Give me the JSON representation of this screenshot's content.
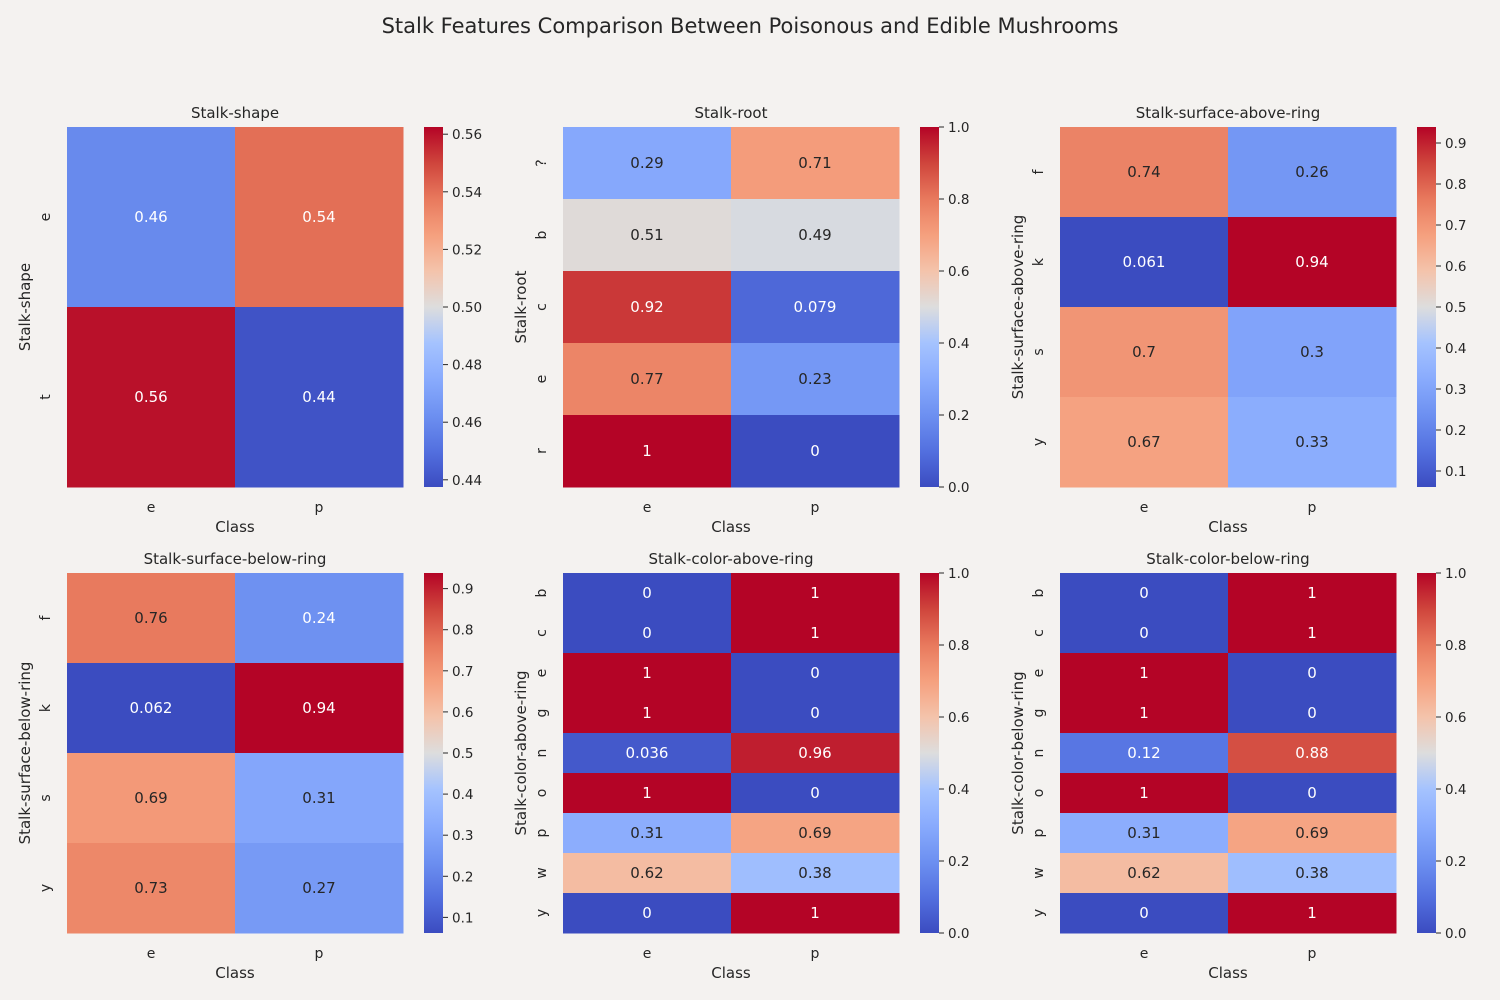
{
  "title": "Stalk Features Comparison Between Poisonous and Edible Mushrooms",
  "chart_data": [
    {
      "type": "heatmap",
      "title": "Stalk-shape",
      "xlabel": "Class",
      "ylabel": "Stalk-shape",
      "x_categories": [
        "e",
        "p"
      ],
      "y_categories": [
        "e",
        "t"
      ],
      "values": [
        [
          0.46,
          0.54
        ],
        [
          0.56,
          0.44
        ]
      ],
      "value_labels": [
        [
          "0.46",
          "0.54"
        ],
        [
          "0.56",
          "0.44"
        ]
      ],
      "colorbar": {
        "min": 0.4375,
        "max": 0.5625,
        "ticks": [
          "0.44",
          "0.46",
          "0.48",
          "0.50",
          "0.52",
          "0.54",
          "0.56"
        ]
      },
      "colormap": "coolwarm"
    },
    {
      "type": "heatmap",
      "title": "Stalk-root",
      "xlabel": "Class",
      "ylabel": "Stalk-root",
      "x_categories": [
        "e",
        "p"
      ],
      "y_categories": [
        "?",
        "b",
        "c",
        "e",
        "r"
      ],
      "values": [
        [
          0.29,
          0.71
        ],
        [
          0.51,
          0.49
        ],
        [
          0.92,
          0.079
        ],
        [
          0.77,
          0.23
        ],
        [
          1,
          0
        ]
      ],
      "value_labels": [
        [
          "0.29",
          "0.71"
        ],
        [
          "0.51",
          "0.49"
        ],
        [
          "0.92",
          "0.079"
        ],
        [
          "0.77",
          "0.23"
        ],
        [
          "1",
          "0"
        ]
      ],
      "colorbar": {
        "min": 0,
        "max": 1,
        "ticks": [
          "0.0",
          "0.2",
          "0.4",
          "0.6",
          "0.8",
          "1.0"
        ]
      },
      "colormap": "coolwarm"
    },
    {
      "type": "heatmap",
      "title": "Stalk-surface-above-ring",
      "xlabel": "Class",
      "ylabel": "Stalk-surface-above-ring",
      "x_categories": [
        "e",
        "p"
      ],
      "y_categories": [
        "f",
        "k",
        "s",
        "y"
      ],
      "values": [
        [
          0.74,
          0.26
        ],
        [
          0.061,
          0.94
        ],
        [
          0.7,
          0.3
        ],
        [
          0.67,
          0.33
        ]
      ],
      "value_labels": [
        [
          "0.74",
          "0.26"
        ],
        [
          "0.061",
          "0.94"
        ],
        [
          "0.7",
          "0.3"
        ],
        [
          "0.67",
          "0.33"
        ]
      ],
      "colorbar": {
        "min": 0.061,
        "max": 0.939,
        "ticks": [
          "0.1",
          "0.2",
          "0.3",
          "0.4",
          "0.5",
          "0.6",
          "0.7",
          "0.8",
          "0.9"
        ]
      },
      "colormap": "coolwarm"
    },
    {
      "type": "heatmap",
      "title": "Stalk-surface-below-ring",
      "xlabel": "Class",
      "ylabel": "Stalk-surface-below-ring",
      "x_categories": [
        "e",
        "p"
      ],
      "y_categories": [
        "f",
        "k",
        "s",
        "y"
      ],
      "values": [
        [
          0.76,
          0.24
        ],
        [
          0.062,
          0.94
        ],
        [
          0.69,
          0.31
        ],
        [
          0.73,
          0.27
        ]
      ],
      "value_labels": [
        [
          "0.76",
          "0.24"
        ],
        [
          "0.062",
          "0.94"
        ],
        [
          "0.69",
          "0.31"
        ],
        [
          "0.73",
          "0.27"
        ]
      ],
      "colorbar": {
        "min": 0.062,
        "max": 0.938,
        "ticks": [
          "0.1",
          "0.2",
          "0.3",
          "0.4",
          "0.5",
          "0.6",
          "0.7",
          "0.8",
          "0.9"
        ]
      },
      "colormap": "coolwarm"
    },
    {
      "type": "heatmap",
      "title": "Stalk-color-above-ring",
      "xlabel": "Class",
      "ylabel": "Stalk-color-above-ring",
      "x_categories": [
        "e",
        "p"
      ],
      "y_categories": [
        "b",
        "c",
        "e",
        "g",
        "n",
        "o",
        "p",
        "w",
        "y"
      ],
      "values": [
        [
          0,
          1
        ],
        [
          0,
          1
        ],
        [
          1,
          0
        ],
        [
          1,
          0
        ],
        [
          0.036,
          0.96
        ],
        [
          1,
          0
        ],
        [
          0.31,
          0.69
        ],
        [
          0.62,
          0.38
        ],
        [
          0,
          1
        ]
      ],
      "value_labels": [
        [
          "0",
          "1"
        ],
        [
          "0",
          "1"
        ],
        [
          "1",
          "0"
        ],
        [
          "1",
          "0"
        ],
        [
          "0.036",
          "0.96"
        ],
        [
          "1",
          "0"
        ],
        [
          "0.31",
          "0.69"
        ],
        [
          "0.62",
          "0.38"
        ],
        [
          "0",
          "1"
        ]
      ],
      "colorbar": {
        "min": 0,
        "max": 1,
        "ticks": [
          "0.0",
          "0.2",
          "0.4",
          "0.6",
          "0.8",
          "1.0"
        ]
      },
      "colormap": "coolwarm"
    },
    {
      "type": "heatmap",
      "title": "Stalk-color-below-ring",
      "xlabel": "Class",
      "ylabel": "Stalk-color-below-ring",
      "x_categories": [
        "e",
        "p"
      ],
      "y_categories": [
        "b",
        "c",
        "e",
        "g",
        "n",
        "o",
        "p",
        "w",
        "y"
      ],
      "values": [
        [
          0,
          1
        ],
        [
          0,
          1
        ],
        [
          1,
          0
        ],
        [
          1,
          0
        ],
        [
          0.12,
          0.88
        ],
        [
          1,
          0
        ],
        [
          0.31,
          0.69
        ],
        [
          0.62,
          0.38
        ],
        [
          0,
          1
        ]
      ],
      "value_labels": [
        [
          "0",
          "1"
        ],
        [
          "0",
          "1"
        ],
        [
          "1",
          "0"
        ],
        [
          "1",
          "0"
        ],
        [
          "0.12",
          "0.88"
        ],
        [
          "1",
          "0"
        ],
        [
          "0.31",
          "0.69"
        ],
        [
          "0.62",
          "0.38"
        ],
        [
          "0",
          "1"
        ]
      ],
      "colorbar": {
        "min": 0,
        "max": 1,
        "ticks": [
          "0.0",
          "0.2",
          "0.4",
          "0.6",
          "0.8",
          "1.0"
        ]
      },
      "colormap": "coolwarm"
    }
  ]
}
